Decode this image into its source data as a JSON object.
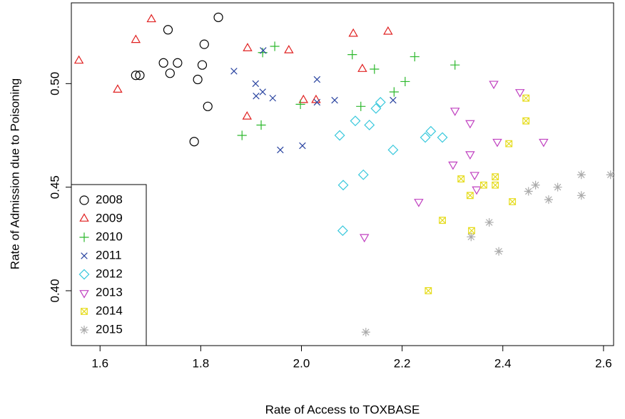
{
  "chart_data": {
    "type": "scatter",
    "xlabel": "Rate of Access to TOXBASE",
    "ylabel": "Rate of Admission due to Poisoning",
    "xlim": [
      1.543,
      2.62
    ],
    "ylim": [
      0.3735,
      0.539
    ],
    "xticks": [
      1.6,
      1.8,
      {
        "value": 2,
        "label": "2.0"
      },
      2.2,
      2.4,
      2.6
    ],
    "yticks": [
      {
        "value": 0.4,
        "label": "0.40"
      },
      0.45,
      {
        "value": 0.5,
        "label": "0.50"
      }
    ],
    "legend": "bottom-left",
    "series": [
      {
        "name": "2008",
        "color": "#000000",
        "marker": "circle",
        "x": [
          1.835,
          1.735,
          1.807,
          1.671,
          1.679,
          1.726,
          1.754,
          1.739,
          1.803,
          1.794,
          1.814,
          1.787
        ],
        "y": [
          0.532,
          0.526,
          0.519,
          0.504,
          0.504,
          0.51,
          0.51,
          0.505,
          0.509,
          0.502,
          0.489,
          0.472
        ]
      },
      {
        "name": "2009",
        "color": "#e02020",
        "marker": "triangle",
        "x": [
          1.558,
          1.635,
          1.671,
          1.702,
          1.893,
          1.975,
          1.892,
          2.004,
          2.029,
          2.103,
          2.121,
          2.172
        ],
        "y": [
          0.511,
          0.497,
          0.521,
          0.531,
          0.517,
          0.516,
          0.484,
          0.492,
          0.492,
          0.524,
          0.507,
          0.525
        ]
      },
      {
        "name": "2010",
        "color": "#2cb82c",
        "marker": "plus",
        "x": [
          1.947,
          1.923,
          2.101,
          2.145,
          2.225,
          2.184,
          2.206,
          2.305,
          1.998,
          1.92,
          1.882,
          2.118
        ],
        "y": [
          0.518,
          0.515,
          0.514,
          0.507,
          0.513,
          0.496,
          0.501,
          0.509,
          0.49,
          0.48,
          0.475,
          0.489
        ]
      },
      {
        "name": "2011",
        "color": "#2a44a0",
        "marker": "cross",
        "x": [
          1.866,
          1.924,
          1.909,
          1.923,
          1.943,
          1.91,
          2.031,
          2.031,
          2.066,
          2.182,
          2.002,
          1.958
        ],
        "y": [
          0.506,
          0.516,
          0.5,
          0.496,
          0.493,
          0.494,
          0.502,
          0.491,
          0.492,
          0.492,
          0.47,
          0.468
        ]
      },
      {
        "name": "2012",
        "color": "#38c8dc",
        "marker": "diamond",
        "x": [
          2.157,
          2.076,
          2.107,
          2.135,
          2.148,
          2.257,
          2.246,
          2.28,
          2.182,
          2.123,
          2.083,
          2.082
        ],
        "y": [
          0.491,
          0.475,
          0.482,
          0.48,
          0.488,
          0.477,
          0.474,
          0.474,
          0.468,
          0.456,
          0.451,
          0.429
        ]
      },
      {
        "name": "2013",
        "color": "#c040c0",
        "marker": "triangle-down",
        "x": [
          2.382,
          2.305,
          2.434,
          2.335,
          2.389,
          2.481,
          2.335,
          2.344,
          2.301,
          2.348,
          2.233,
          2.125
        ],
        "y": [
          0.5,
          0.487,
          0.496,
          0.481,
          0.472,
          0.472,
          0.466,
          0.456,
          0.461,
          0.449,
          0.443,
          0.426
        ]
      },
      {
        "name": "2014",
        "color": "#e6dc1e",
        "marker": "box-x",
        "x": [
          2.446,
          2.446,
          2.412,
          2.317,
          2.385,
          2.385,
          2.362,
          2.335,
          2.419,
          2.28,
          2.338,
          2.252
        ],
        "y": [
          0.493,
          0.482,
          0.471,
          0.454,
          0.455,
          0.451,
          0.451,
          0.446,
          0.443,
          0.434,
          0.429,
          0.4
        ]
      },
      {
        "name": "2015",
        "color": "#aaaaaa",
        "marker": "star",
        "x": [
          2.556,
          2.614,
          2.465,
          2.451,
          2.509,
          2.556,
          2.491,
          2.373,
          2.337,
          2.392,
          2.128
        ],
        "y": [
          0.456,
          0.456,
          0.451,
          0.448,
          0.45,
          0.446,
          0.444,
          0.433,
          0.426,
          0.419,
          0.38
        ]
      }
    ]
  }
}
